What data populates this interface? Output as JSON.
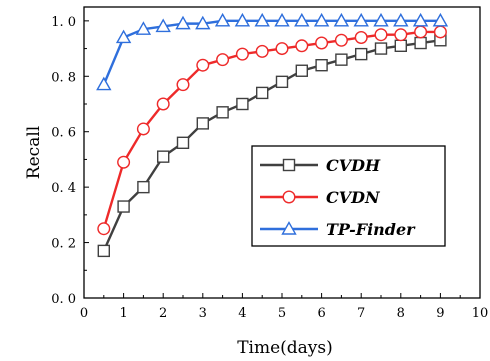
{
  "chart_data": {
    "type": "line",
    "title": "",
    "xlabel": "Time(days)",
    "ylabel": "Recall",
    "xlim": [
      0,
      10
    ],
    "ylim": [
      0.0,
      1.05
    ],
    "x_ticks": [
      "0",
      "1",
      "2",
      "3",
      "4",
      "5",
      "6",
      "7",
      "8",
      "9",
      "10"
    ],
    "y_ticks": [
      "0. 0",
      "0. 2",
      "0. 4",
      "0. 6",
      "0. 8",
      "1. 0"
    ],
    "grid": false,
    "legend_position": "right",
    "x": [
      0.5,
      1.0,
      1.5,
      2.0,
      2.5,
      3.0,
      3.5,
      4.0,
      4.5,
      5.0,
      5.5,
      6.0,
      6.5,
      7.0,
      7.5,
      8.0,
      8.5,
      9.0
    ],
    "series": [
      {
        "name": "CVDH",
        "color": "#404040",
        "marker": "square",
        "values": [
          0.17,
          0.33,
          0.4,
          0.51,
          0.56,
          0.63,
          0.67,
          0.7,
          0.74,
          0.78,
          0.82,
          0.84,
          0.86,
          0.88,
          0.9,
          0.91,
          0.92,
          0.93
        ]
      },
      {
        "name": "CVDN",
        "color": "#ee2a2a",
        "marker": "circle",
        "values": [
          0.25,
          0.49,
          0.61,
          0.7,
          0.77,
          0.84,
          0.86,
          0.88,
          0.89,
          0.9,
          0.91,
          0.92,
          0.93,
          0.94,
          0.95,
          0.95,
          0.96,
          0.96
        ]
      },
      {
        "name": "TP-Finder",
        "color": "#2f6fdc",
        "marker": "triangle",
        "values": [
          0.77,
          0.94,
          0.97,
          0.98,
          0.99,
          0.99,
          1.0,
          1.0,
          1.0,
          1.0,
          1.0,
          1.0,
          1.0,
          1.0,
          1.0,
          1.0,
          1.0,
          1.0
        ]
      }
    ]
  }
}
